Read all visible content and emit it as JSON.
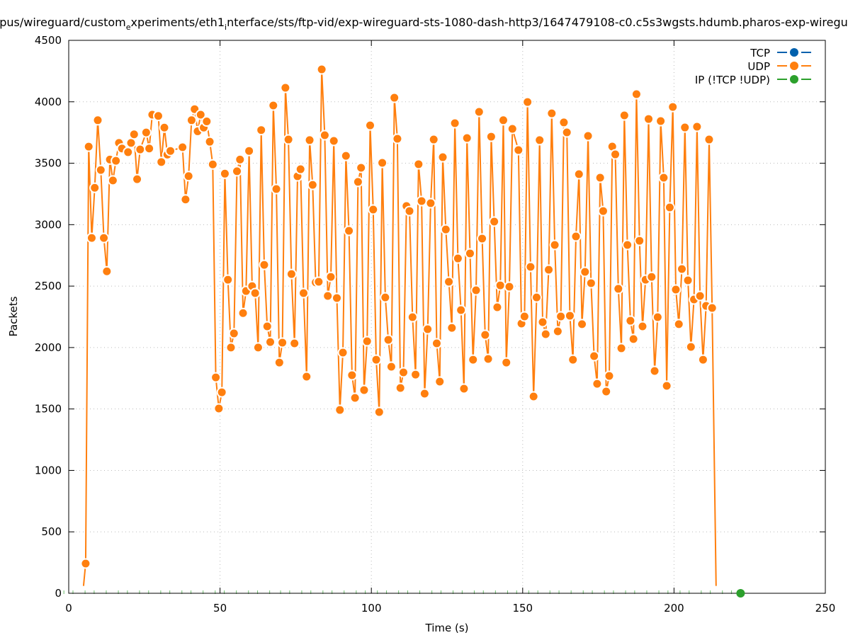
{
  "chart_data": {
    "type": "line",
    "title_parts": [
      "pus/wireguard/custom",
      "e",
      "xperiments/eth1",
      "i",
      "nterface/sts/ftp-vid/exp-wireguard-sts-1080-dash-http3/1647479108-c0.c5s3wgsts.hdumb.pharos-exp-wiregu"
    ],
    "xlabel": "Time (s)",
    "ylabel": "Packets",
    "xlim": [
      0,
      250
    ],
    "ylim": [
      0,
      4500
    ],
    "xticks": [
      "0",
      "50",
      "100",
      "150",
      "200",
      "250"
    ],
    "yticks": [
      "0",
      "500",
      "1000",
      "1500",
      "2000",
      "2500",
      "3000",
      "3500",
      "4000",
      "4500"
    ],
    "grid": true,
    "legend_position": "top-right",
    "legend": [
      {
        "label": "TCP",
        "color": "#0060ad"
      },
      {
        "label": "UDP",
        "color": "#ff7f0e"
      },
      {
        "label": "IP (!TCP  !UDP)",
        "color": "#2ca02c"
      }
    ],
    "series": [
      {
        "name": "TCP",
        "points": []
      },
      {
        "name": "UDP",
        "line_start": [
          4.9,
          60
        ],
        "line_end": [
          213.9,
          60
        ],
        "points": [
          [
            5.6,
            242
          ],
          [
            6.6,
            3635
          ],
          [
            7.6,
            2892
          ],
          [
            8.6,
            3300
          ],
          [
            9.6,
            3850
          ],
          [
            10.6,
            3445
          ],
          [
            11.6,
            2892
          ],
          [
            12.6,
            2620
          ],
          [
            13.6,
            3530
          ],
          [
            14.6,
            3360
          ],
          [
            15.6,
            3520
          ],
          [
            16.6,
            3665
          ],
          [
            17.6,
            3620
          ],
          [
            19.6,
            3590
          ],
          [
            20.6,
            3665
          ],
          [
            21.6,
            3735
          ],
          [
            22.6,
            3370
          ],
          [
            23.6,
            3612
          ],
          [
            25.6,
            3750
          ],
          [
            26.6,
            3620
          ],
          [
            27.6,
            3895
          ],
          [
            29.6,
            3885
          ],
          [
            30.6,
            3510
          ],
          [
            31.6,
            3790
          ],
          [
            32.6,
            3570
          ],
          [
            33.6,
            3600
          ],
          [
            37.6,
            3630
          ],
          [
            38.6,
            3205
          ],
          [
            39.6,
            3395
          ],
          [
            40.6,
            3850
          ],
          [
            41.6,
            3940
          ],
          [
            42.6,
            3760
          ],
          [
            43.6,
            3895
          ],
          [
            44.6,
            3790
          ],
          [
            45.6,
            3840
          ],
          [
            46.6,
            3675
          ],
          [
            47.6,
            3490
          ],
          [
            48.6,
            1757
          ],
          [
            49.6,
            1504
          ],
          [
            50.6,
            1636
          ],
          [
            51.6,
            3415
          ],
          [
            52.6,
            2552
          ],
          [
            53.6,
            2000
          ],
          [
            54.6,
            2115
          ],
          [
            55.6,
            3435
          ],
          [
            56.6,
            3530
          ],
          [
            57.6,
            2280
          ],
          [
            58.6,
            2460
          ],
          [
            59.6,
            3600
          ],
          [
            60.6,
            2500
          ],
          [
            61.6,
            2443
          ],
          [
            62.6,
            2000
          ],
          [
            63.6,
            3770
          ],
          [
            64.6,
            2673
          ],
          [
            65.6,
            2172
          ],
          [
            66.6,
            2045
          ],
          [
            67.6,
            3970
          ],
          [
            68.6,
            3290
          ],
          [
            69.6,
            1878
          ],
          [
            70.6,
            2040
          ],
          [
            71.6,
            4114
          ],
          [
            72.6,
            3693
          ],
          [
            73.6,
            2598
          ],
          [
            74.6,
            2034
          ],
          [
            75.6,
            3394
          ],
          [
            76.6,
            3451
          ],
          [
            77.6,
            2443
          ],
          [
            78.6,
            1763
          ],
          [
            79.6,
            3688
          ],
          [
            80.6,
            3324
          ],
          [
            81.6,
            2530
          ],
          [
            82.6,
            2535
          ],
          [
            83.6,
            4264
          ],
          [
            84.6,
            3728
          ],
          [
            85.6,
            2420
          ],
          [
            86.6,
            2575
          ],
          [
            87.6,
            3682
          ],
          [
            88.6,
            2403
          ],
          [
            89.6,
            1492
          ],
          [
            90.6,
            1959
          ],
          [
            91.6,
            3560
          ],
          [
            92.6,
            2950
          ],
          [
            93.6,
            1775
          ],
          [
            94.6,
            1590
          ],
          [
            95.6,
            3348
          ],
          [
            96.6,
            3463
          ],
          [
            97.6,
            1654
          ],
          [
            98.6,
            2051
          ],
          [
            99.6,
            3808
          ],
          [
            100.6,
            3123
          ],
          [
            101.6,
            1901
          ],
          [
            102.6,
            1475
          ],
          [
            103.6,
            3503
          ],
          [
            104.6,
            2408
          ],
          [
            105.6,
            2063
          ],
          [
            106.6,
            1844
          ],
          [
            107.6,
            4033
          ],
          [
            108.6,
            3699
          ],
          [
            109.6,
            1671
          ],
          [
            110.6,
            1798
          ],
          [
            111.6,
            3152
          ],
          [
            112.6,
            3111
          ],
          [
            113.6,
            2247
          ],
          [
            114.6,
            1780
          ],
          [
            115.6,
            3492
          ],
          [
            116.6,
            3192
          ],
          [
            117.6,
            1625
          ],
          [
            118.6,
            2149
          ],
          [
            119.6,
            3175
          ],
          [
            120.6,
            3693
          ],
          [
            121.6,
            2034
          ],
          [
            122.6,
            1723
          ],
          [
            123.6,
            3549
          ],
          [
            124.6,
            2961
          ],
          [
            125.6,
            2535
          ],
          [
            126.6,
            2160
          ],
          [
            127.6,
            3826
          ],
          [
            128.6,
            2725
          ],
          [
            129.6,
            2305
          ],
          [
            130.6,
            1665
          ],
          [
            131.6,
            3705
          ],
          [
            132.6,
            2766
          ],
          [
            133.6,
            1901
          ],
          [
            134.6,
            2466
          ],
          [
            135.6,
            3918
          ],
          [
            136.6,
            2887
          ],
          [
            137.6,
            2103
          ],
          [
            138.6,
            1907
          ],
          [
            139.6,
            3716
          ],
          [
            140.6,
            3025
          ],
          [
            141.6,
            2328
          ],
          [
            142.6,
            2506
          ],
          [
            143.6,
            3850
          ],
          [
            144.6,
            1878
          ],
          [
            145.6,
            2495
          ],
          [
            146.6,
            3780
          ],
          [
            148.6,
            3607
          ],
          [
            149.6,
            2195
          ],
          [
            150.6,
            2253
          ],
          [
            151.6,
            3998
          ],
          [
            152.6,
            2656
          ],
          [
            153.6,
            1602
          ],
          [
            154.6,
            2408
          ],
          [
            155.6,
            3688
          ],
          [
            156.6,
            2207
          ],
          [
            157.6,
            2109
          ],
          [
            158.6,
            2633
          ],
          [
            159.6,
            3906
          ],
          [
            160.6,
            2835
          ],
          [
            161.6,
            2132
          ],
          [
            162.6,
            2253
          ],
          [
            163.6,
            3832
          ],
          [
            164.6,
            3751
          ],
          [
            165.6,
            2259
          ],
          [
            166.6,
            1901
          ],
          [
            167.6,
            2904
          ],
          [
            168.6,
            3411
          ],
          [
            169.6,
            2190
          ],
          [
            170.6,
            2616
          ],
          [
            171.6,
            3722
          ],
          [
            172.6,
            2524
          ],
          [
            173.6,
            1930
          ],
          [
            174.6,
            1705
          ],
          [
            175.6,
            3382
          ],
          [
            176.6,
            3111
          ],
          [
            177.6,
            1642
          ],
          [
            178.6,
            1769
          ],
          [
            179.6,
            3636
          ],
          [
            180.6,
            3572
          ],
          [
            181.6,
            2478
          ],
          [
            182.6,
            1994
          ],
          [
            183.6,
            3889
          ],
          [
            184.6,
            2835
          ],
          [
            185.6,
            2218
          ],
          [
            186.6,
            2069
          ],
          [
            187.6,
            4062
          ],
          [
            188.6,
            2869
          ],
          [
            189.6,
            2172
          ],
          [
            190.6,
            2552
          ],
          [
            191.6,
            3860
          ],
          [
            192.6,
            2575
          ],
          [
            193.6,
            1809
          ],
          [
            194.6,
            2247
          ],
          [
            195.6,
            3843
          ],
          [
            196.6,
            3382
          ],
          [
            197.6,
            1688
          ],
          [
            198.6,
            3140
          ],
          [
            199.6,
            3958
          ],
          [
            200.6,
            2472
          ],
          [
            201.6,
            2190
          ],
          [
            202.6,
            2639
          ],
          [
            203.6,
            3791
          ],
          [
            204.6,
            2547
          ],
          [
            205.6,
            2005
          ],
          [
            206.6,
            2391
          ],
          [
            207.6,
            3797
          ],
          [
            208.6,
            2420
          ],
          [
            209.6,
            1901
          ],
          [
            210.6,
            2339
          ],
          [
            211.6,
            3693
          ],
          [
            212.6,
            2322
          ]
        ]
      },
      {
        "name": "IP (!TCP  !UDP)",
        "tick_points": [
          [
            -1.6,
            0
          ],
          [
            1.4,
            0
          ],
          [
            5.4,
            0
          ],
          [
            8.4,
            0
          ],
          [
            12.4,
            0
          ],
          [
            16.4,
            0
          ],
          [
            19.4,
            0
          ],
          [
            23.4,
            0
          ],
          [
            26.4,
            0
          ],
          [
            30.4,
            0
          ],
          [
            33.4,
            0
          ],
          [
            37.4,
            0
          ],
          [
            40.4,
            0
          ],
          [
            44.4,
            0
          ],
          [
            48.4,
            0
          ],
          [
            51.4,
            0
          ],
          [
            55.4,
            0
          ],
          [
            59.4,
            0
          ],
          [
            62.4,
            0
          ],
          [
            66.4,
            0
          ],
          [
            70,
            0
          ],
          [
            73,
            0
          ],
          [
            77,
            0
          ],
          [
            80,
            0
          ],
          [
            84,
            0
          ],
          [
            87,
            0
          ],
          [
            91,
            0
          ],
          [
            95,
            0
          ],
          [
            98,
            0
          ],
          [
            102,
            0
          ],
          [
            105,
            0
          ],
          [
            109,
            0
          ],
          [
            112,
            0
          ],
          [
            116,
            0
          ],
          [
            120,
            0
          ],
          [
            123,
            0
          ],
          [
            127,
            0
          ],
          [
            130,
            0
          ],
          [
            134,
            0
          ],
          [
            137,
            0
          ],
          [
            141,
            0
          ],
          [
            145,
            0
          ],
          [
            148,
            0
          ],
          [
            152,
            0
          ],
          [
            155,
            0
          ],
          [
            159,
            0
          ],
          [
            162,
            0
          ],
          [
            166,
            0
          ],
          [
            170,
            0
          ],
          [
            173,
            0
          ],
          [
            177,
            0
          ],
          [
            180,
            0
          ],
          [
            184,
            0
          ],
          [
            187,
            0
          ],
          [
            191,
            0
          ],
          [
            195,
            0
          ],
          [
            198,
            0
          ],
          [
            202,
            0
          ],
          [
            205,
            0
          ],
          [
            209,
            0
          ],
          [
            212,
            0
          ],
          [
            216,
            0
          ],
          [
            219,
            0
          ]
        ],
        "points": [
          [
            222,
            0
          ]
        ]
      }
    ]
  }
}
